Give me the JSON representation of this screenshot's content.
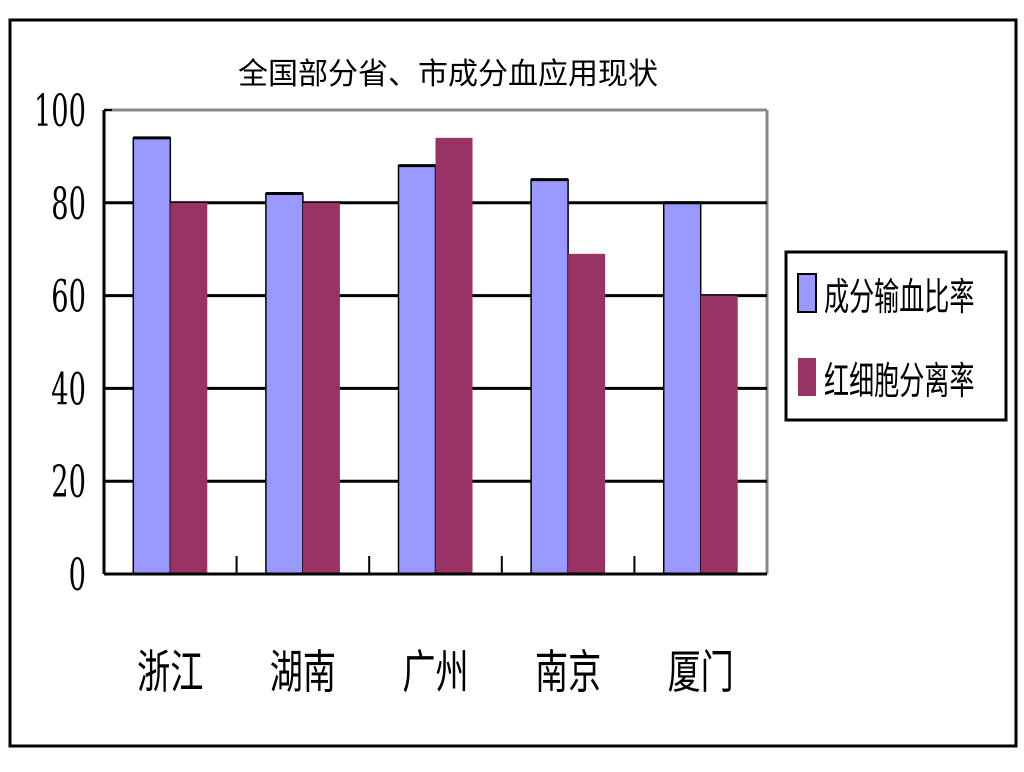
{
  "chart_data": {
    "type": "bar",
    "title": "全国部分省、市成分血应用现状",
    "xlabel": "",
    "ylabel": "",
    "categories": [
      "浙江",
      "湖南",
      "广州",
      "南京",
      "厦门"
    ],
    "series": [
      {
        "name": "成分输血比率",
        "color": "#9999ff",
        "values": [
          94,
          82,
          88,
          85,
          80
        ]
      },
      {
        "name": "红细胞分离率",
        "color": "#993366",
        "values": [
          80,
          80,
          94,
          69,
          60
        ]
      }
    ],
    "ylim": [
      0,
      100
    ],
    "yticks": [
      0,
      20,
      40,
      60,
      80,
      100
    ],
    "grid": true,
    "legend": "right"
  }
}
